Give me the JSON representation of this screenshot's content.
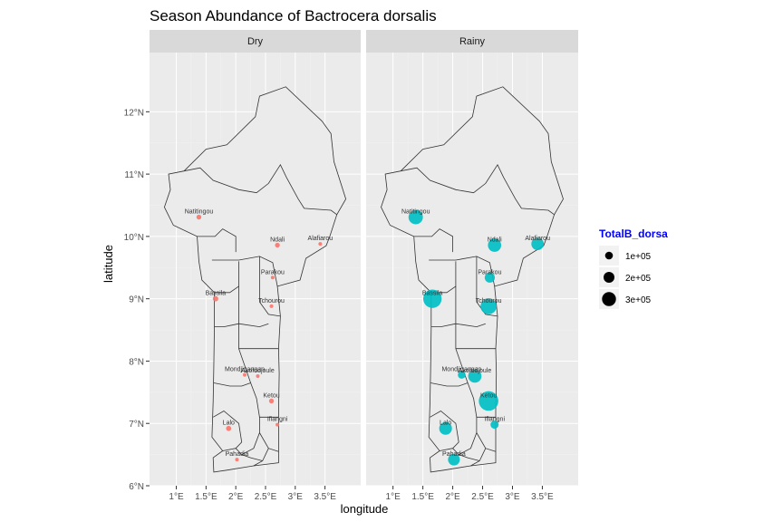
{
  "chart_data": {
    "type": "map-bubble",
    "title": "Season Abundance of Bactrocera dorsalis",
    "xlabel": "longitude",
    "ylabel": "latitude",
    "xlim": [
      0.55,
      4.1
    ],
    "ylim": [
      6.0,
      12.95
    ],
    "x_ticks": [
      1.0,
      1.5,
      2.0,
      2.5,
      3.0,
      3.5
    ],
    "x_tick_labels": [
      "1°E",
      "1.5°E",
      "2°E",
      "2.5°E",
      "3°E",
      "3.5°E"
    ],
    "y_ticks": [
      6,
      7,
      8,
      9,
      10,
      11,
      12
    ],
    "y_tick_labels": [
      "6°N",
      "7°N",
      "8°N",
      "9°N",
      "10°N",
      "11°N",
      "12°N"
    ],
    "legend": {
      "title": "TotalB_dorsa",
      "title_color": "#0000ff",
      "entries": [
        {
          "label": "1e+05",
          "value": 100000
        },
        {
          "label": "2e+05",
          "value": 200000
        },
        {
          "label": "3e+05",
          "value": 300000
        }
      ]
    },
    "panels": [
      {
        "label": "Dry",
        "color": "#f8766d",
        "points": [
          {
            "site": "Natitingou",
            "lon": 1.38,
            "lat": 10.31,
            "value": 16000
          },
          {
            "site": "Ndali",
            "lon": 2.7,
            "lat": 9.86,
            "value": 16000
          },
          {
            "site": "Alafiarou",
            "lon": 3.42,
            "lat": 9.88,
            "value": 8000
          },
          {
            "site": "Parakou",
            "lon": 2.62,
            "lat": 9.34,
            "value": 4000
          },
          {
            "site": "Bassila",
            "lon": 1.66,
            "lat": 9.0,
            "value": 20000
          },
          {
            "site": "Tchourou",
            "lon": 2.6,
            "lat": 8.88,
            "value": 4000
          },
          {
            "site": "Mondjigangan",
            "lon": 2.15,
            "lat": 7.78,
            "value": 2000
          },
          {
            "site": "Akofodjoule",
            "lon": 2.37,
            "lat": 7.76,
            "value": 6000
          },
          {
            "site": "Ketou",
            "lon": 2.6,
            "lat": 7.36,
            "value": 16000
          },
          {
            "site": "Ifiangni",
            "lon": 2.7,
            "lat": 6.98,
            "value": 5000
          },
          {
            "site": "Lalo",
            "lon": 1.88,
            "lat": 6.92,
            "value": 18000
          },
          {
            "site": "Pahadia",
            "lon": 2.02,
            "lat": 6.42,
            "value": 4000
          }
        ]
      },
      {
        "label": "Rainy",
        "color": "#00bfc4",
        "points": [
          {
            "site": "Natitingou",
            "lon": 1.38,
            "lat": 10.31,
            "value": 140000
          },
          {
            "site": "Ndali",
            "lon": 2.7,
            "lat": 9.86,
            "value": 120000
          },
          {
            "site": "Alafiarou",
            "lon": 3.42,
            "lat": 9.88,
            "value": 105000
          },
          {
            "site": "Parakou",
            "lon": 2.62,
            "lat": 9.34,
            "value": 70000
          },
          {
            "site": "Bassila",
            "lon": 1.66,
            "lat": 9.0,
            "value": 230000
          },
          {
            "site": "Tchourou",
            "lon": 2.6,
            "lat": 8.88,
            "value": 175000
          },
          {
            "site": "Mondjigangan",
            "lon": 2.15,
            "lat": 7.78,
            "value": 40000
          },
          {
            "site": "Akofodjoule",
            "lon": 2.37,
            "lat": 7.76,
            "value": 120000
          },
          {
            "site": "Ketou",
            "lon": 2.6,
            "lat": 7.36,
            "value": 260000
          },
          {
            "site": "Ifiangni",
            "lon": 2.7,
            "lat": 6.98,
            "value": 45000
          },
          {
            "site": "Lalo",
            "lon": 1.88,
            "lat": 6.92,
            "value": 110000
          },
          {
            "site": "Pahadia",
            "lon": 2.02,
            "lat": 6.42,
            "value": 95000
          }
        ]
      }
    ],
    "site_labels": {
      "Natitingou": "Natitingou",
      "Ndali": "Ndali",
      "Alafiarou": "Alafiarou",
      "Parakou": "Parakou",
      "Bassila": "Bassila",
      "Tchourou": "Tchourou",
      "Mondjigangan": "Mondjigangan",
      "Akofodjoule": "Akofodjoule",
      "Ketou": "Ketou",
      "Ifiangni": "Ifiangni",
      "Lalo": "Lalo",
      "Pahadia": "Pahadia"
    }
  }
}
